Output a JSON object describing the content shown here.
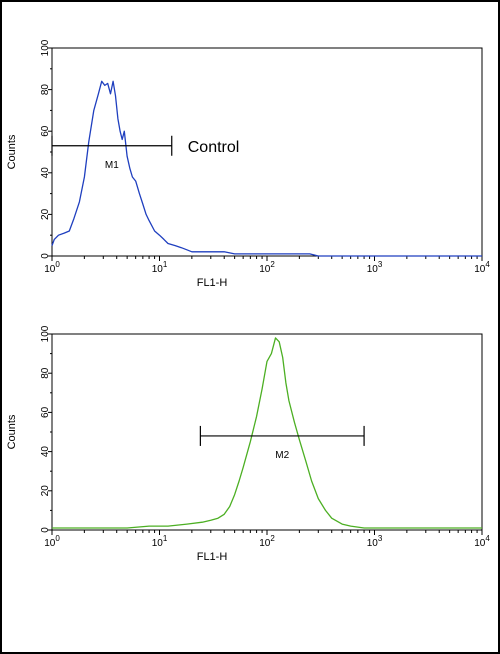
{
  "chart_data": [
    {
      "type": "area",
      "panel": "top",
      "xlabel": "FL1-H",
      "ylabel": "Counts",
      "xscale": "log",
      "xlim": [
        1,
        10000
      ],
      "ylim": [
        0,
        100
      ],
      "x_tick_labels": [
        {
          "base": "10",
          "exp": "0"
        },
        {
          "base": "10",
          "exp": "1"
        },
        {
          "base": "10",
          "exp": "2"
        },
        {
          "base": "10",
          "exp": "3"
        },
        {
          "base": "10",
          "exp": "4"
        }
      ],
      "y_tick_labels": [
        "0",
        "20",
        "40",
        "60",
        "80",
        "100"
      ],
      "color": "#1f3fbf",
      "series": [
        {
          "x": [
            1.0,
            1.05,
            1.15,
            1.3,
            1.45,
            1.6,
            1.8,
            2.0,
            2.2,
            2.45,
            2.7,
            2.9,
            3.1,
            3.3,
            3.5,
            3.7,
            3.9,
            4.1,
            4.3,
            4.5,
            4.7,
            5.0,
            5.3,
            5.6,
            6.0,
            6.5,
            7.0,
            7.5,
            8.0,
            9.0,
            10,
            11,
            12,
            14,
            16,
            18,
            20,
            25,
            30,
            40,
            50,
            70,
            100,
            150,
            200,
            250,
            300,
            500,
            1000,
            3000,
            10000
          ],
          "values": [
            5,
            8,
            10,
            11,
            12,
            18,
            26,
            38,
            55,
            70,
            78,
            84,
            82,
            83,
            78,
            84,
            77,
            66,
            60,
            56,
            60,
            48,
            42,
            38,
            36,
            30,
            25,
            20,
            17,
            12,
            10,
            8,
            6,
            5,
            4,
            3,
            2,
            2,
            2,
            2,
            1,
            1,
            1,
            1,
            1,
            1,
            0,
            0,
            0,
            0,
            0
          ]
        }
      ],
      "marker": {
        "name": "M1",
        "x_start": 1.0,
        "x_end": 13,
        "y": 53
      },
      "annotation": "Control"
    },
    {
      "type": "area",
      "panel": "bottom",
      "xlabel": "FL1-H",
      "ylabel": "Counts",
      "xscale": "log",
      "xlim": [
        1,
        10000
      ],
      "ylim": [
        0,
        100
      ],
      "x_tick_labels": [
        {
          "base": "10",
          "exp": "0"
        },
        {
          "base": "10",
          "exp": "1"
        },
        {
          "base": "10",
          "exp": "2"
        },
        {
          "base": "10",
          "exp": "3"
        },
        {
          "base": "10",
          "exp": "4"
        }
      ],
      "y_tick_labels": [
        "0",
        "20",
        "40",
        "60",
        "80",
        "100"
      ],
      "color": "#4caf23",
      "series": [
        {
          "x": [
            1.0,
            2.0,
            3.0,
            5.0,
            8.0,
            12,
            18,
            25,
            30,
            35,
            40,
            45,
            50,
            55,
            60,
            70,
            80,
            90,
            100,
            110,
            120,
            130,
            140,
            150,
            160,
            180,
            200,
            230,
            260,
            300,
            350,
            400,
            500,
            600,
            800,
            1000,
            2000,
            5000,
            10000
          ],
          "values": [
            1,
            1,
            1,
            1,
            2,
            2,
            3,
            4,
            5,
            6,
            8,
            12,
            18,
            25,
            32,
            45,
            58,
            72,
            86,
            90,
            98,
            96,
            88,
            75,
            66,
            55,
            46,
            35,
            25,
            16,
            10,
            6,
            3,
            2,
            1,
            1,
            1,
            1,
            1
          ]
        }
      ],
      "marker": {
        "name": "M2",
        "x_start": 24,
        "x_end": 800,
        "y": 48
      }
    }
  ]
}
